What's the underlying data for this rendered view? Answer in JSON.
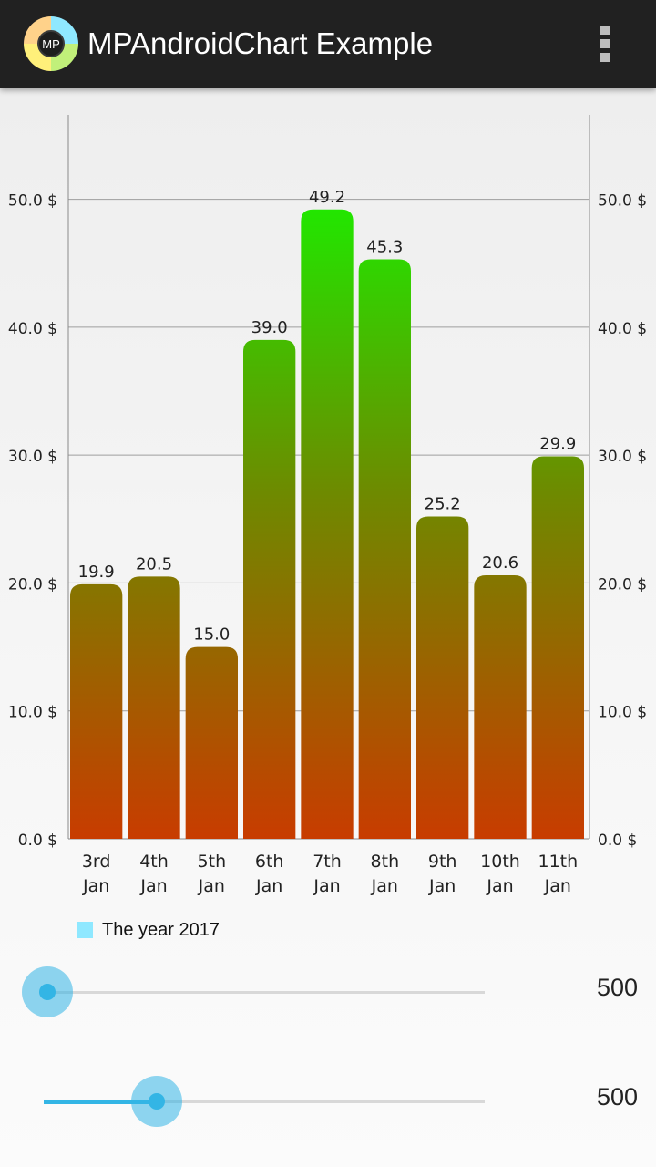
{
  "app": {
    "title": "MPAndroidChart Example",
    "logo_text": "MP",
    "menu_icon": "overflow-menu-icon"
  },
  "colors": {
    "appbar": "#212121",
    "grid": "#9e9e9e",
    "bar_top": "#22e600",
    "bar_bottom": "#c83c00",
    "legend_swatch": "#8fe8ff",
    "slider_accent": "#33b5e5"
  },
  "chart_data": {
    "type": "bar",
    "categories": [
      "3rd Jan",
      "4th Jan",
      "5th Jan",
      "6th Jan",
      "7th Jan",
      "8th Jan",
      "9th Jan",
      "10th Jan",
      "11th Jan"
    ],
    "series": [
      {
        "name": "The year 2017",
        "values": [
          19.9,
          20.5,
          15.0,
          39.0,
          49.2,
          45.3,
          25.2,
          20.6,
          29.9
        ]
      }
    ],
    "data_labels": [
      "19.9",
      "20.5",
      "15.0",
      "39.0",
      "49.2",
      "45.3",
      "25.2",
      "20.6",
      "29.9"
    ],
    "y_ticks": [
      "0.0 $",
      "10.0 $",
      "20.0 $",
      "30.0 $",
      "40.0 $",
      "50.0 $"
    ],
    "y_tick_values": [
      0,
      10,
      20,
      30,
      40,
      50
    ],
    "ylim": [
      0,
      56.6
    ],
    "left_axis": true,
    "right_axis": true,
    "grid": "horizontal",
    "legend_position": "bottom-left",
    "title": "",
    "xlabel": "",
    "ylabel": ""
  },
  "sliders": [
    {
      "name": "slider-x",
      "value": "500",
      "fraction": 0.0
    },
    {
      "name": "slider-y",
      "value": "500",
      "fraction": 0.25
    }
  ]
}
